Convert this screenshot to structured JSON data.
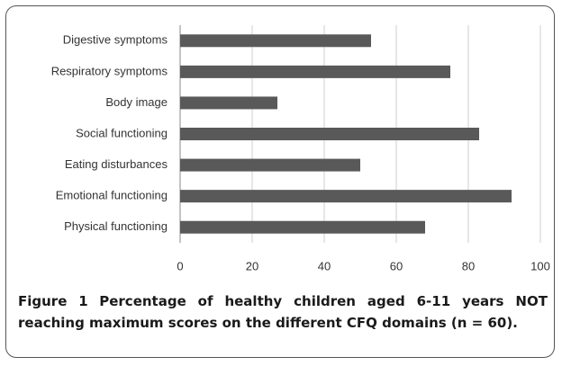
{
  "chart_data": {
    "type": "hbar",
    "categories": [
      "Digestive symptoms",
      "Respiratory symptoms",
      "Body image",
      "Social functioning",
      "Eating disturbances",
      "Emotional functioning",
      "Physical functioning"
    ],
    "values": [
      53,
      75,
      27,
      83,
      50,
      92,
      68
    ],
    "color": "#595959",
    "xlim": [
      0,
      100
    ],
    "xticks": [
      0,
      20,
      40,
      60,
      80,
      100
    ],
    "grid": true
  },
  "caption": {
    "label": "Figure 1",
    "text": "Percentage of healthy children aged 6-11 years NOT reaching maximum scores on the different CFQ domains (n = 60)."
  }
}
